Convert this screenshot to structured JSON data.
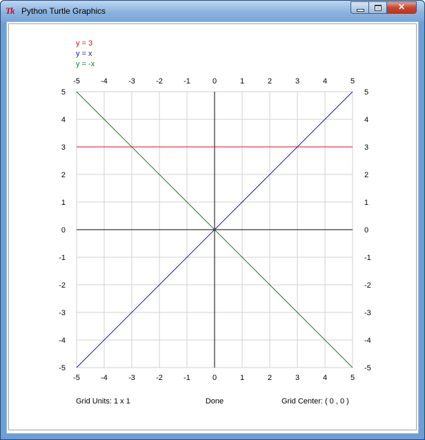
{
  "window": {
    "title": "Python Turtle Graphics",
    "icon": "tk-icon",
    "controls": {
      "close_glyph": "✕"
    }
  },
  "chart_data": {
    "type": "line",
    "title": "",
    "xlabel": "",
    "ylabel": "",
    "xlim": [
      -5,
      5
    ],
    "ylim": [
      -5,
      5
    ],
    "grid": true,
    "x_ticks": [
      "-5",
      "-4",
      "-3",
      "-2",
      "-1",
      "0",
      "1",
      "2",
      "3",
      "4",
      "5"
    ],
    "y_ticks": [
      "5",
      "4",
      "3",
      "2",
      "1",
      "0",
      "-1",
      "-2",
      "-3",
      "-4",
      "-5"
    ],
    "legend_position": "top-left",
    "series": [
      {
        "name": "y = 3",
        "color": "#d01010",
        "x": [
          -5,
          5
        ],
        "y": [
          3,
          3
        ]
      },
      {
        "name": "y = x",
        "color": "#1a1a9c",
        "x": [
          -5,
          5
        ],
        "y": [
          -5,
          5
        ]
      },
      {
        "name": "y = -x",
        "color": "#1e7a1e",
        "x": [
          -5,
          5
        ],
        "y": [
          5,
          -5
        ]
      }
    ],
    "colors": {
      "grid": "#d0d0d0",
      "axes": "#000000",
      "status": "#d01010"
    }
  },
  "footer": {
    "grid_units": "Grid Units:  1  x  1",
    "status": "Done",
    "grid_center": "Grid Center:  ( 0 ,  0 )"
  }
}
